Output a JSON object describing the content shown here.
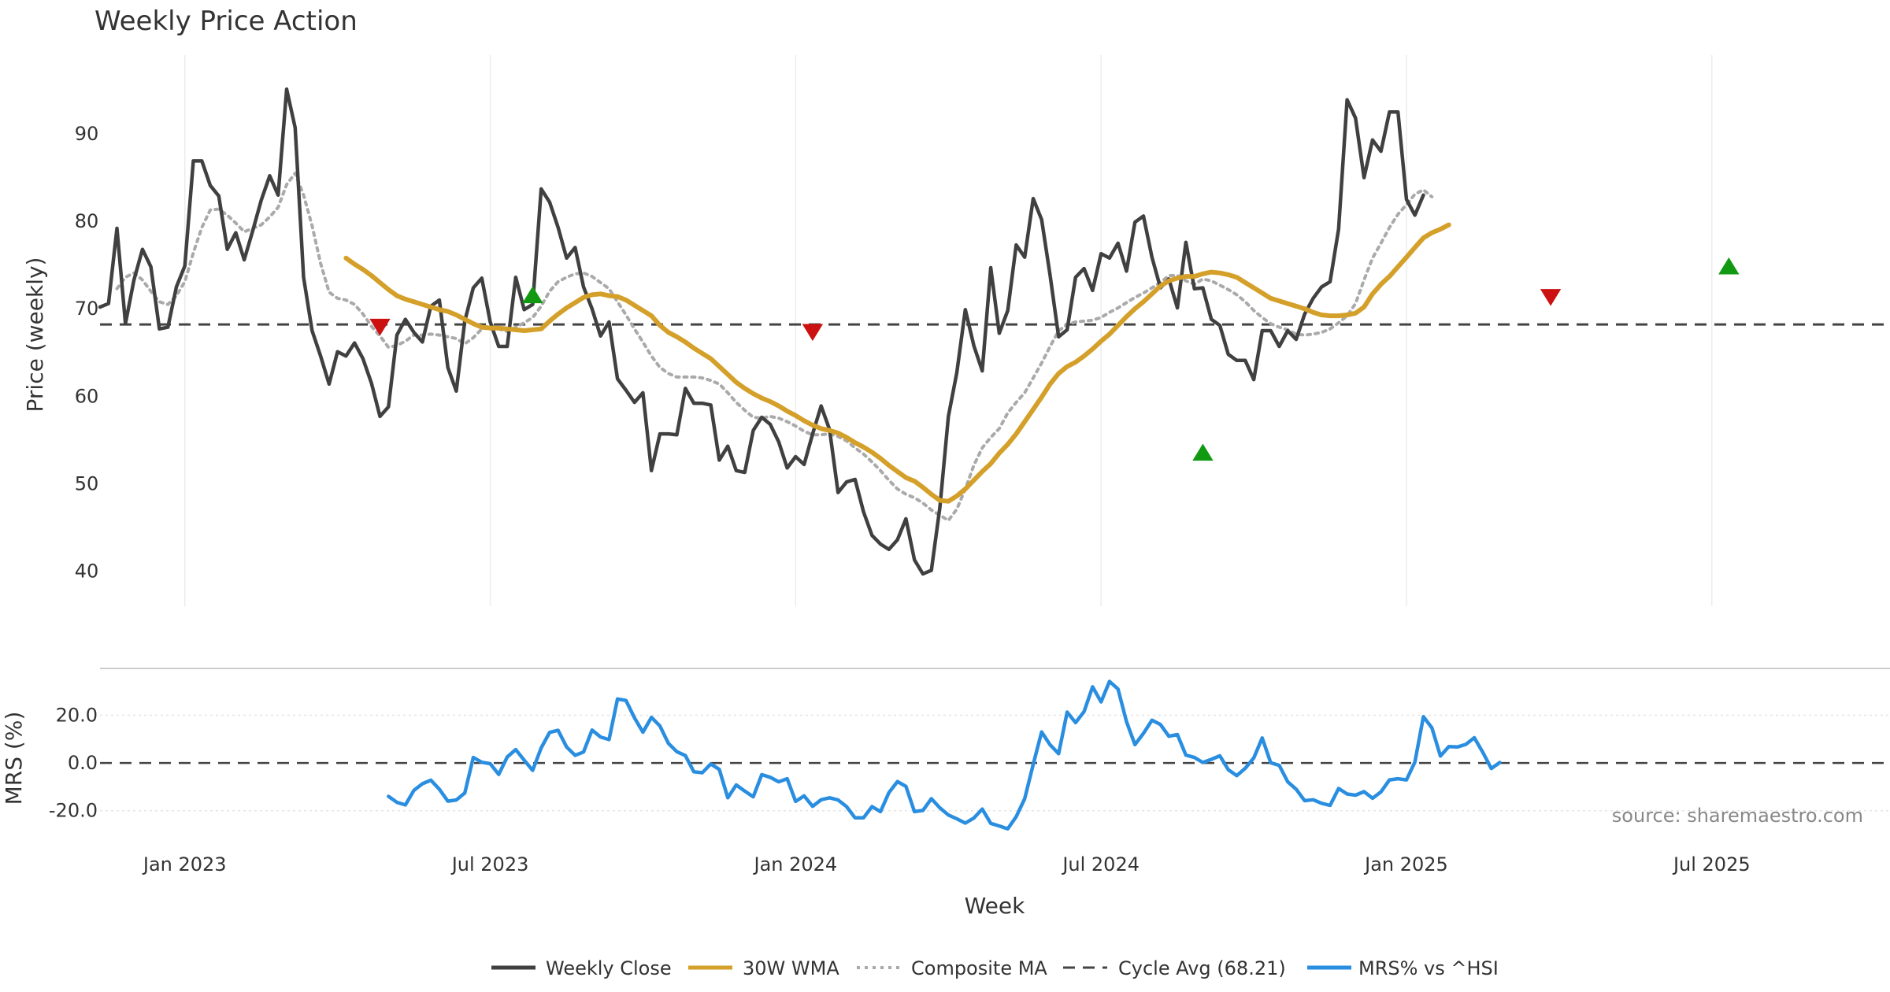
{
  "chart_data": {
    "type": "line",
    "title": "Weekly Price Action",
    "source": "source: sharemaestro.com",
    "xlabel": "Week",
    "x_ticks": [
      "Jan 2023",
      "Jul 2023",
      "Jan 2024",
      "Jul 2024",
      "Jan 2025",
      "Jul 2025"
    ],
    "x_tick_weeks": [
      10,
      46,
      82,
      118,
      154,
      190
    ],
    "weeks_count": 212,
    "price_panel": {
      "ylabel": "Price (weekly)",
      "ylim": [
        36,
        99
      ],
      "y_ticks": [
        40,
        50,
        60,
        70,
        80,
        90
      ],
      "series": [
        {
          "name": "Weekly Close",
          "color": "#404040",
          "start_week": 0,
          "values": [
            70.2,
            70.6,
            79.2,
            68.3,
            73.3,
            76.8,
            74.8,
            67.7,
            67.9,
            72.5,
            74.9,
            86.9,
            86.9,
            84.1,
            82.9,
            76.8,
            78.7,
            75.6,
            78.9,
            82.4,
            85.2,
            83.0,
            95.1,
            90.7,
            73.6,
            67.5,
            64.6,
            61.4,
            65.1,
            64.6,
            66.1,
            64.3,
            61.5,
            57.7,
            58.8,
            67.0,
            68.8,
            67.3,
            66.2,
            70.3,
            71.0,
            63.3,
            60.6,
            68.6,
            72.4,
            73.5,
            68.5,
            65.7,
            65.7,
            73.6,
            69.9,
            70.5,
            83.7,
            82.2,
            79.3,
            75.8,
            77.0,
            72.5,
            70.0,
            66.9,
            68.5,
            62.0,
            60.7,
            59.3,
            60.4,
            51.5,
            55.7,
            55.7,
            55.6,
            60.9,
            59.2,
            59.2,
            59.0,
            52.7,
            54.3,
            51.5,
            51.3,
            56.1,
            57.6,
            56.8,
            54.8,
            51.8,
            53.1,
            52.2,
            55.7,
            58.9,
            56.2,
            49.0,
            50.2,
            50.5,
            46.8,
            44.1,
            43.1,
            42.5,
            43.6,
            46.0,
            41.3,
            39.7,
            40.1,
            47.3,
            57.7,
            62.7,
            69.9,
            65.8,
            62.9,
            74.7,
            67.2,
            69.8,
            77.3,
            75.9,
            82.6,
            80.2,
            73.8,
            66.8,
            67.6,
            73.6,
            74.6,
            72.1,
            76.3,
            75.8,
            77.5,
            74.3,
            79.9,
            80.6,
            75.9,
            72.4,
            73.4,
            70.1,
            77.6,
            72.3,
            72.4,
            68.8,
            68.1,
            64.8,
            64.1,
            64.1,
            61.9,
            67.5,
            67.5,
            65.7,
            67.5,
            66.5,
            69.4,
            71.2,
            72.5,
            73.1,
            79.1,
            93.9,
            91.8,
            85.0,
            89.3,
            88.0,
            92.5,
            92.5,
            82.5,
            80.7,
            83.0
          ]
        },
        {
          "name": "30W WMA",
          "color": "#d4a02a",
          "start_week": 29,
          "values": [
            75.8,
            75.1,
            74.5,
            73.8,
            73.0,
            72.2,
            71.5,
            71.1,
            70.8,
            70.5,
            70.2,
            69.9,
            69.7,
            69.3,
            68.8,
            68.3,
            67.9,
            67.8,
            67.8,
            67.7,
            67.6,
            67.5,
            67.6,
            67.7,
            68.6,
            69.4,
            70.1,
            70.7,
            71.3,
            71.6,
            71.7,
            71.5,
            71.4,
            71.0,
            70.4,
            69.8,
            69.2,
            68.1,
            67.3,
            66.8,
            66.2,
            65.5,
            64.9,
            64.3,
            63.4,
            62.5,
            61.6,
            60.9,
            60.3,
            59.8,
            59.4,
            58.9,
            58.3,
            57.8,
            57.2,
            56.7,
            56.3,
            56.1,
            55.8,
            55.3,
            54.7,
            54.2,
            53.6,
            52.9,
            52.1,
            51.4,
            50.7,
            50.3,
            49.6,
            48.8,
            48.1,
            48.0,
            48.6,
            49.4,
            50.4,
            51.4,
            52.3,
            53.5,
            54.5,
            55.7,
            57.1,
            58.5,
            59.9,
            61.4,
            62.6,
            63.4,
            63.9,
            64.6,
            65.4,
            66.3,
            67.1,
            68.1,
            69.1,
            70.0,
            70.8,
            71.7,
            72.6,
            73.2,
            73.5,
            73.7,
            73.7,
            74.0,
            74.2,
            74.1,
            73.9,
            73.6,
            73.0,
            72.4,
            71.8,
            71.2,
            70.9,
            70.6,
            70.3,
            70.0,
            69.6,
            69.3,
            69.2,
            69.2,
            69.3,
            69.5,
            70.2,
            71.7,
            72.8,
            73.7,
            74.8,
            75.9,
            77.0,
            78.1,
            78.7,
            79.1,
            79.6
          ]
        },
        {
          "name": "Composite MA",
          "color": "#aaaaaa",
          "start_week": 2,
          "values": [
            72.3,
            73.6,
            74.1,
            73.3,
            72.0,
            70.8,
            70.5,
            71.5,
            73.1,
            76.4,
            79.3,
            81.3,
            81.4,
            80.7,
            79.8,
            78.8,
            79.2,
            79.6,
            80.5,
            81.6,
            84.2,
            85.5,
            83.0,
            79.5,
            75.2,
            71.9,
            71.2,
            71.0,
            70.5,
            69.4,
            68.0,
            66.9,
            65.6,
            65.8,
            66.3,
            67.0,
            67.0,
            67.1,
            67.0,
            66.8,
            66.6,
            66.0,
            66.7,
            67.7,
            68.1,
            67.7,
            67.4,
            67.9,
            68.4,
            69.0,
            70.3,
            72.0,
            73.1,
            73.6,
            74.0,
            74.1,
            73.7,
            73.0,
            72.3,
            70.8,
            69.3,
            67.7,
            66.2,
            64.6,
            63.3,
            62.6,
            62.2,
            62.2,
            62.2,
            62.1,
            61.8,
            61.4,
            60.4,
            59.3,
            58.4,
            57.6,
            57.5,
            57.7,
            57.5,
            57.1,
            56.6,
            56.0,
            55.6,
            55.6,
            55.7,
            55.4,
            54.9,
            54.1,
            53.4,
            52.5,
            51.5,
            50.4,
            49.4,
            48.8,
            48.4,
            47.8,
            47.0,
            46.4,
            45.8,
            47.1,
            49.4,
            52.1,
            54.1,
            55.3,
            56.3,
            58.1,
            59.3,
            60.4,
            62.1,
            63.8,
            65.7,
            67.5,
            68.2,
            68.5,
            68.6,
            68.7,
            69.0,
            69.6,
            70.1,
            70.7,
            71.3,
            71.8,
            72.4,
            73.0,
            73.8,
            73.8,
            73.2,
            72.8,
            73.4,
            73.2,
            72.7,
            72.2,
            71.6,
            70.8,
            69.8,
            69.0,
            68.3,
            67.9,
            67.6,
            67.1,
            67.0,
            67.1,
            67.3,
            67.7,
            68.4,
            69.2,
            70.6,
            73.3,
            75.8,
            77.5,
            79.3,
            80.8,
            81.9,
            83.1,
            83.6,
            82.8
          ]
        },
        {
          "name": "Cycle Avg (68.21)",
          "color": "#444444",
          "constant": 68.21
        }
      ],
      "markers": [
        {
          "type": "sell",
          "week": 33,
          "value": 68.0,
          "color": "#cc1111"
        },
        {
          "type": "buy",
          "week": 51,
          "value": 71.5,
          "color": "#119911"
        },
        {
          "type": "sell",
          "week": 84,
          "value": 67.4,
          "color": "#cc1111"
        },
        {
          "type": "buy",
          "week": 130,
          "value": 53.5,
          "color": "#119911"
        },
        {
          "type": "sell",
          "week": 171,
          "value": 71.4,
          "color": "#cc1111"
        },
        {
          "type": "buy",
          "week": 192,
          "value": 74.8,
          "color": "#119911"
        }
      ]
    },
    "mrs_panel": {
      "ylabel": "MRS (%)",
      "ylim": [
        -30,
        36
      ],
      "y_ticks": [
        "20.0",
        "0.0",
        "-20.0"
      ],
      "y_tick_values": [
        20,
        0,
        -20
      ],
      "zero_line": 0,
      "series": [
        {
          "name": "MRS% vs ^HSI",
          "color": "#2a8ee0",
          "start_week": 34,
          "values": [
            -14.0,
            -16.5,
            -17.6,
            -11.5,
            -8.7,
            -7.2,
            -11.0,
            -16.0,
            -15.5,
            -12.6,
            2.3,
            0.3,
            -0.3,
            -4.8,
            2.5,
            5.6,
            1.2,
            -3.1,
            6.3,
            12.8,
            13.7,
            6.7,
            3.2,
            4.6,
            13.8,
            10.9,
            9.8,
            26.8,
            26.2,
            18.9,
            12.9,
            19.1,
            15.5,
            8.2,
            4.7,
            3.1,
            -3.7,
            -4.1,
            -0.4,
            -2.7,
            -14.6,
            -9.2,
            -11.8,
            -14.2,
            -4.9,
            -6.0,
            -7.9,
            -6.6,
            -16.1,
            -13.8,
            -18.2,
            -15.4,
            -14.6,
            -15.5,
            -18.3,
            -23.0,
            -23.0,
            -18.3,
            -20.4,
            -12.4,
            -7.8,
            -9.8,
            -20.4,
            -19.9,
            -15.0,
            -18.8,
            -21.8,
            -23.4,
            -25.2,
            -23.1,
            -19.3,
            -25.3,
            -26.4,
            -27.6,
            -22.5,
            -15.0,
            -0.6,
            13.0,
            7.6,
            3.9,
            21.3,
            16.9,
            21.5,
            31.9,
            25.6,
            34.2,
            31.0,
            17.3,
            7.7,
            12.4,
            17.9,
            16.1,
            11.2,
            11.9,
            3.3,
            2.3,
            0.2,
            1.5,
            3.0,
            -2.8,
            -5.3,
            -2.2,
            2.1,
            10.5,
            0.1,
            -1.0,
            -7.9,
            -11.0,
            -15.8,
            -15.4,
            -16.9,
            -17.8,
            -10.7,
            -13.0,
            -13.5,
            -12.0,
            -14.8,
            -12.1,
            -7.1,
            -6.6,
            -7.1,
            0.4,
            19.4,
            14.7,
            2.9,
            6.9,
            6.7,
            7.8,
            10.6,
            4.5,
            -2.3,
            0.2
          ]
        }
      ]
    },
    "legend": [
      "Weekly Close",
      "30W WMA",
      "Composite MA",
      "Cycle Avg (68.21)",
      "MRS% vs ^HSI"
    ],
    "legend_position": "bottom-center"
  }
}
